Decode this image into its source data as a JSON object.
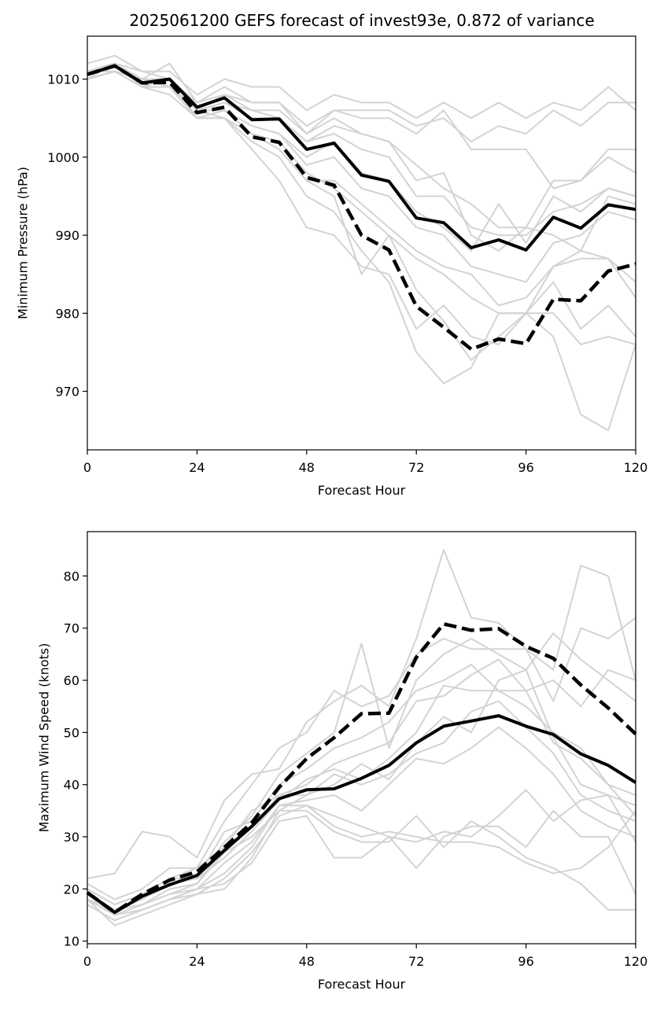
{
  "title": "2025061200 GEFS forecast of invest93e, 0.872 of variance",
  "colors": {
    "member": "#d3d3d3",
    "mean": "#000000",
    "axes": "#000000",
    "background": "#ffffff"
  },
  "chart_data": [
    {
      "type": "line",
      "xlabel": "Forecast Hour",
      "ylabel": "Minimum Pressure (hPa)",
      "xlim": [
        0,
        120
      ],
      "ylim": [
        962.5,
        1015.5
      ],
      "xticks": [
        0,
        24,
        48,
        72,
        96,
        120
      ],
      "yticks": [
        970,
        980,
        990,
        1000,
        1010
      ],
      "x": [
        0,
        6,
        12,
        18,
        24,
        30,
        36,
        42,
        48,
        54,
        60,
        66,
        72,
        78,
        84,
        90,
        96,
        102,
        108,
        114,
        120
      ],
      "series": [
        {
          "style": "thick-solid",
          "values": [
            1010.6,
            1011.7,
            1009.5,
            1010.0,
            1006.4,
            1007.6,
            1004.8,
            1004.9,
            1001.0,
            1001.8,
            997.7,
            996.9,
            992.2,
            991.6,
            988.4,
            989.4,
            988.1,
            992.3,
            990.9,
            993.9,
            993.3
          ]
        },
        {
          "style": "thick-dashed",
          "values": [
            1010.6,
            1011.7,
            1009.5,
            1009.6,
            1005.7,
            1006.4,
            1002.6,
            1001.9,
            997.4,
            996.4,
            990.0,
            988.1,
            980.9,
            978.2,
            975.4,
            976.7,
            976.1,
            981.8,
            981.6,
            985.4,
            986.3
          ]
        },
        {
          "style": "member",
          "values": [
            1012,
            1013,
            1011,
            1011,
            1008,
            1010,
            1009,
            1009,
            1006,
            1008,
            1007,
            1007,
            1005,
            1007,
            1005,
            1007,
            1005,
            1007,
            1006,
            1009,
            1006
          ]
        },
        {
          "style": "member",
          "values": [
            1011,
            1012,
            1010,
            1012,
            1007,
            1008,
            1007,
            1007,
            1004,
            1006,
            1005,
            1005,
            1003,
            1006,
            1001,
            1001,
            1001,
            996,
            997,
            1001,
            1001
          ]
        },
        {
          "style": "member",
          "values": [
            1011,
            1012,
            1011,
            1010,
            1007,
            1009,
            1007,
            1007,
            1003,
            1006,
            1006,
            1006,
            1004,
            1005,
            1002,
            1004,
            1003,
            1006,
            1004,
            1007,
            1007
          ]
        },
        {
          "style": "member",
          "values": [
            1010,
            1011,
            1010,
            1009,
            1006,
            1007,
            1006,
            1006,
            1003,
            1005,
            1003,
            1002,
            997,
            998,
            990,
            988,
            991,
            990,
            988,
            995,
            994
          ]
        },
        {
          "style": "member",
          "values": [
            1011,
            1012,
            1010,
            1010,
            1006,
            1008,
            1006,
            1005,
            1002,
            1004,
            1003,
            1002,
            999,
            996,
            994,
            991,
            991,
            997,
            997,
            1000,
            998
          ]
        },
        {
          "style": "member",
          "values": [
            1010,
            1012,
            1009,
            1010,
            1005,
            1006,
            1004,
            1003,
            1000,
            1002,
            998,
            997,
            993,
            991,
            988,
            994,
            989,
            995,
            993,
            996,
            995
          ]
        },
        {
          "style": "member",
          "values": [
            1011,
            1012,
            1010,
            1010,
            1006,
            1007,
            1005,
            1005,
            1002,
            1003,
            1001,
            1000,
            995,
            995,
            991,
            990,
            990,
            993,
            994,
            996,
            995
          ]
        },
        {
          "style": "member",
          "values": [
            1010,
            1011,
            1010,
            1009,
            1006,
            1006,
            1004,
            1003,
            999,
            1000,
            996,
            995,
            991,
            990,
            986,
            985,
            984,
            989,
            990,
            993,
            992
          ]
        },
        {
          "style": "member",
          "values": [
            1011,
            1011,
            1009,
            1009,
            1005,
            1006,
            1003,
            1001,
            997,
            997,
            994,
            991,
            988,
            986,
            985,
            981,
            982,
            986,
            988,
            987,
            984
          ]
        },
        {
          "style": "member",
          "values": [
            1010,
            1011,
            1010,
            1009,
            1006,
            1005,
            1003,
            1002,
            998,
            996,
            993,
            990,
            987,
            985,
            982,
            980,
            980,
            986,
            987,
            987,
            982
          ]
        },
        {
          "style": "member",
          "values": [
            1010,
            1011,
            1009,
            1008,
            1005,
            1005,
            1001,
            997,
            991,
            990,
            986,
            985,
            978,
            981,
            977,
            976,
            980,
            980,
            976,
            977,
            976
          ]
        },
        {
          "style": "member",
          "values": [
            1010,
            1011,
            1009,
            1009,
            1005,
            1005,
            1002,
            1000,
            995,
            993,
            988,
            984,
            975,
            971,
            973,
            980,
            980,
            977,
            967,
            965,
            976
          ]
        },
        {
          "style": "member",
          "values": [
            1011,
            1012,
            1010,
            1009,
            1005,
            1006,
            1003,
            1001,
            997,
            995,
            985,
            990,
            983,
            979,
            974,
            977,
            980,
            984,
            978,
            981,
            977
          ]
        }
      ]
    },
    {
      "type": "line",
      "xlabel": "Forecast Hour",
      "ylabel": "Maximum Wind Speed (knots)",
      "xlim": [
        0,
        120
      ],
      "ylim": [
        9.5,
        88.5
      ],
      "xticks": [
        0,
        24,
        48,
        72,
        96,
        120
      ],
      "yticks": [
        10,
        20,
        30,
        40,
        50,
        60,
        70,
        80
      ],
      "x": [
        0,
        6,
        12,
        18,
        24,
        30,
        36,
        42,
        48,
        54,
        60,
        66,
        72,
        78,
        84,
        90,
        96,
        102,
        108,
        114,
        120
      ],
      "series": [
        {
          "style": "thick-solid",
          "values": [
            19.3,
            15.5,
            18.6,
            20.8,
            22.6,
            27.4,
            32.0,
            37.3,
            39.0,
            39.2,
            41.2,
            43.7,
            48.0,
            51.2,
            52.2,
            53.2,
            51.2,
            49.6,
            45.9,
            43.7,
            40.4
          ]
        },
        {
          "style": "thick-dashed",
          "values": [
            19.3,
            15.5,
            19.0,
            21.7,
            23.3,
            28.0,
            32.7,
            39.5,
            45.0,
            49.0,
            53.6,
            53.7,
            64.4,
            70.8,
            69.6,
            69.9,
            66.5,
            64.2,
            59.1,
            54.7,
            49.7
          ]
        },
        {
          "style": "member",
          "values": [
            22,
            23,
            31,
            30,
            26,
            37,
            42,
            43,
            52,
            56,
            59,
            55,
            68,
            85,
            72,
            71,
            66,
            62,
            82,
            80,
            60
          ]
        },
        {
          "style": "member",
          "values": [
            21,
            18,
            20,
            24,
            24,
            33,
            40,
            47,
            50,
            58,
            55,
            57,
            65,
            68,
            66,
            66,
            66,
            56,
            70,
            68,
            72
          ]
        },
        {
          "style": "member",
          "values": [
            20,
            17,
            19,
            22,
            22,
            29,
            34,
            42,
            46,
            50,
            67,
            47,
            60,
            65,
            68,
            65,
            62,
            69,
            64,
            60,
            56
          ]
        },
        {
          "style": "member",
          "values": [
            19,
            16,
            18,
            21,
            22,
            31,
            33,
            40,
            43,
            47,
            49,
            52,
            58,
            60,
            63,
            58,
            58,
            60,
            55,
            62,
            60
          ]
        },
        {
          "style": "member",
          "values": [
            20,
            17,
            19,
            22,
            24,
            28,
            35,
            38,
            40,
            44,
            46,
            48,
            56,
            57,
            61,
            64,
            58,
            48,
            45,
            40,
            34
          ]
        },
        {
          "style": "member",
          "values": [
            19,
            16,
            18,
            21,
            22,
            26,
            31,
            37,
            41,
            43,
            41,
            45,
            50,
            59,
            58,
            58,
            55,
            50,
            47,
            40,
            38
          ]
        },
        {
          "style": "member",
          "values": [
            18,
            15,
            17,
            19,
            21,
            28,
            32,
            38,
            38,
            40,
            44,
            41,
            48,
            53,
            50,
            60,
            62,
            49,
            40,
            38,
            36
          ]
        },
        {
          "style": "member",
          "values": [
            18,
            15,
            17,
            20,
            21,
            27,
            30,
            35,
            38,
            42,
            40,
            42,
            46,
            48,
            54,
            56,
            51,
            46,
            38,
            35,
            33
          ]
        },
        {
          "style": "member",
          "values": [
            18,
            16,
            17,
            19,
            20,
            25,
            29,
            36,
            37,
            38,
            35,
            40,
            45,
            44,
            47,
            51,
            47,
            42,
            35,
            32,
            30
          ]
        },
        {
          "style": "member",
          "values": [
            17,
            14,
            16,
            18,
            19,
            22,
            27,
            34,
            36,
            34,
            32,
            30,
            29,
            31,
            30,
            34,
            39,
            33,
            37,
            38,
            29
          ]
        },
        {
          "style": "member",
          "values": [
            17,
            14,
            16,
            18,
            20,
            21,
            25,
            33,
            34,
            26,
            26,
            30,
            24,
            30,
            32,
            32,
            28,
            35,
            30,
            30,
            19
          ]
        },
        {
          "style": "member",
          "values": [
            18,
            13,
            15,
            17,
            19,
            20,
            26,
            35,
            35,
            31,
            29,
            29,
            34,
            28,
            33,
            30,
            26,
            24,
            21,
            16,
            16
          ]
        },
        {
          "style": "member",
          "values": [
            19,
            15,
            16,
            18,
            20,
            23,
            28,
            36,
            36,
            32,
            30,
            31,
            30,
            29,
            29,
            28,
            25,
            23,
            24,
            28,
            35
          ]
        }
      ]
    }
  ]
}
